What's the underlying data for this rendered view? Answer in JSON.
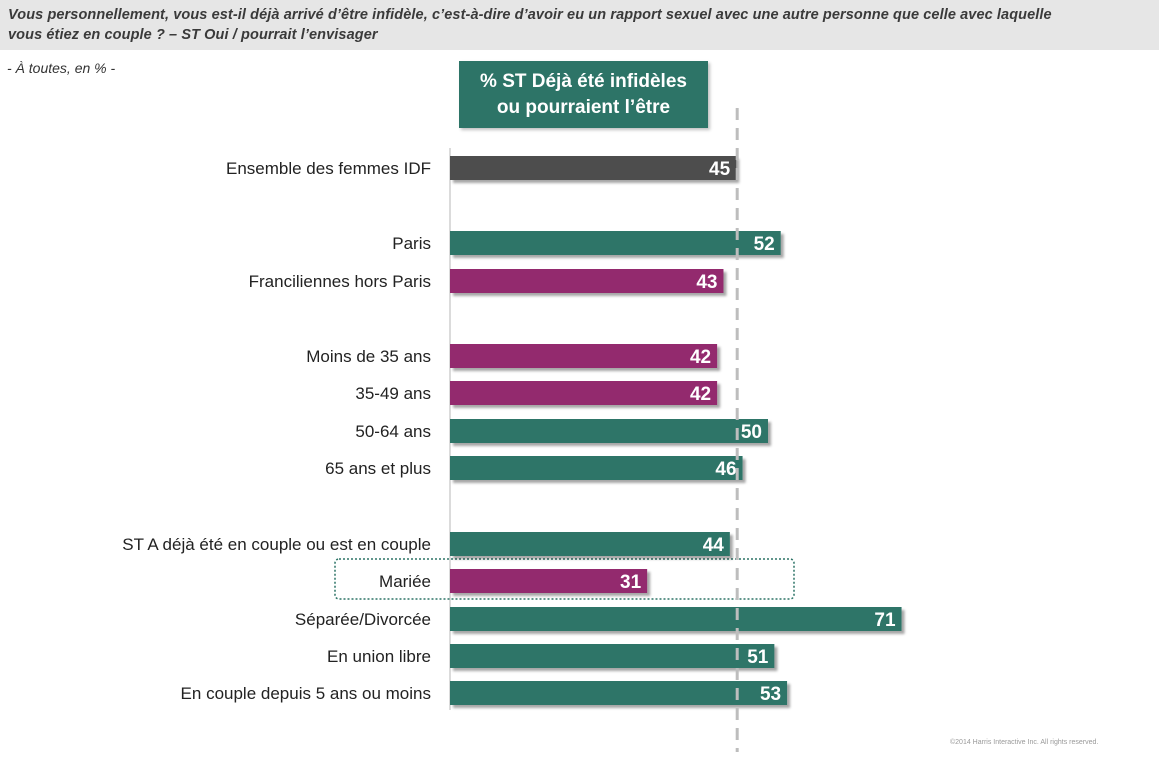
{
  "question": {
    "line1": "Vous personnellement, vous est-il déjà arrivé d’être infidèle, c’est-à-dire d’avoir eu un rapport sexuel avec une autre personne que celle avec laquelle",
    "line2": "vous étiez en couple ? – ST Oui / pourrait l’envisager"
  },
  "base_note": "- À toutes, en % -",
  "header_box": {
    "line1": "% ST Déjà été infidèles",
    "line2": "ou pourraient l’être"
  },
  "copyright": "©2014 Harris Interactive Inc. All rights reserved.",
  "colors": {
    "total": "#4d4d4d",
    "above": "#2d7467",
    "below": "#932a6e",
    "reference_line": "#bdbdbd",
    "highlight_border": "#2d7467"
  },
  "chart_data": {
    "type": "bar",
    "orientation": "horizontal",
    "reference_value": 45,
    "xlim": [
      0,
      75
    ],
    "categories": [
      "Ensemble des femmes IDF",
      "Paris",
      "Franciliennes hors Paris",
      "Moins de 35 ans",
      "35-49 ans",
      "50-64 ans",
      "65 ans et plus",
      "ST A déjà été en couple ou est en couple",
      "Mariée",
      "Séparée/Divorcée",
      "En union libre",
      "En couple depuis 5 ans ou moins"
    ],
    "values": [
      45,
      52,
      43,
      42,
      42,
      50,
      46,
      44,
      31,
      71,
      51,
      53
    ],
    "bar_color_keys": [
      "total",
      "above",
      "below",
      "below",
      "below",
      "above",
      "above",
      "above",
      "below",
      "above",
      "above",
      "above"
    ],
    "groups": [
      [
        0
      ],
      [
        1,
        2
      ],
      [
        3,
        4,
        5,
        6
      ],
      [
        7,
        8,
        9,
        10,
        11
      ]
    ],
    "highlighted_category": "Mariée"
  }
}
